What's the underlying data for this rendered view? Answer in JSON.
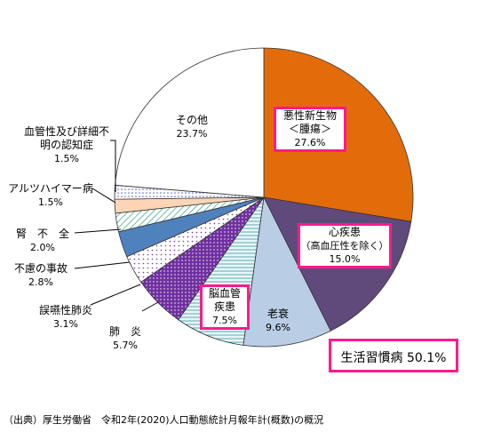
{
  "chart_data": {
    "type": "pie",
    "slices": [
      {
        "label": "悪性新生物＜腫瘍＞",
        "lines": [
          "悪性新生物",
          "＜腫瘍＞"
        ],
        "value": 27.6,
        "value_label": "27.6%",
        "color": "#e36c0a",
        "pattern": "solid",
        "highlight": true
      },
      {
        "label": "心疾患（高血圧性を除く）",
        "lines": [
          "心疾患",
          "（高血圧性を除く）"
        ],
        "value": 15.0,
        "value_label": "15.0%",
        "color": "#604a7b",
        "pattern": "solid",
        "highlight": true
      },
      {
        "label": "老衰",
        "lines": [
          "老衰"
        ],
        "value": 9.6,
        "value_label": "9.6%",
        "color": "#b9cde5",
        "pattern": "solid",
        "highlight": false
      },
      {
        "label": "脳血管疾患",
        "lines": [
          "脳血管",
          "疾患"
        ],
        "value": 7.5,
        "value_label": "7.5%",
        "color": "#dbeef4",
        "pattern": "hlines",
        "highlight": true
      },
      {
        "label": "肺炎",
        "lines": [
          "肺　炎"
        ],
        "value": 5.7,
        "value_label": "5.7%",
        "color": "#7030a0",
        "pattern": "dots",
        "highlight": false
      },
      {
        "label": "誤嚥性肺炎",
        "lines": [
          "誤嚥性肺炎"
        ],
        "value": 3.1,
        "value_label": "3.1%",
        "color": "#ffffff",
        "pattern": "sparse-dots",
        "highlight": false
      },
      {
        "label": "不慮の事故",
        "lines": [
          "不慮の事故"
        ],
        "value": 2.8,
        "value_label": "2.8%",
        "color": "#4f81bd",
        "pattern": "solid",
        "highlight": false
      },
      {
        "label": "腎不全",
        "lines": [
          "腎　不　全"
        ],
        "value": 2.0,
        "value_label": "2.0%",
        "color": "#c6efe2",
        "pattern": "diag",
        "highlight": false
      },
      {
        "label": "アルツハイマー病",
        "lines": [
          "アルツハイマー病"
        ],
        "value": 1.5,
        "value_label": "1.5%",
        "color": "#fbd5b5",
        "pattern": "solid",
        "highlight": false
      },
      {
        "label": "血管性及び詳細不明の認知症",
        "lines": [
          "血管性及び詳細不",
          "明の認知症"
        ],
        "value": 1.5,
        "value_label": "1.5%",
        "color": "#ffffff",
        "pattern": "blue-dots",
        "highlight": false
      },
      {
        "label": "その他",
        "lines": [
          "その他"
        ],
        "value": 23.7,
        "value_label": "23.7%",
        "color": "#ffffff",
        "pattern": "solid",
        "highlight": false
      }
    ],
    "start_angle_deg": 0,
    "direction": "clockwise"
  },
  "summary_label": "生活習慣病 50.1%",
  "source_note": "（出典）厚生労働省　令和2年(2020)人口動態統計月報年計(概数)の概況"
}
